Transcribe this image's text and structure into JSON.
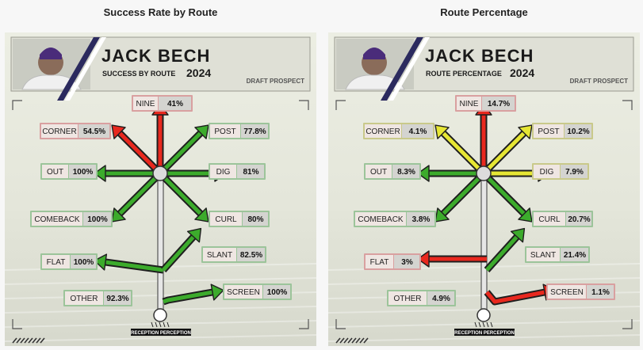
{
  "panels": [
    {
      "title": "Success Rate by Route",
      "player_first": "JACK",
      "player_last": "BECH",
      "subtitle": "SUCCESS BY ROUTE",
      "year": "2024",
      "tag": "DRAFT PROSPECT",
      "footer": "RECEPTION PERCEPTION",
      "routes": [
        {
          "key": "nine",
          "label": "NINE",
          "value": "41%",
          "color": "red"
        },
        {
          "key": "corner",
          "label": "CORNER",
          "value": "54.5%",
          "color": "red"
        },
        {
          "key": "post",
          "label": "POST",
          "value": "77.8%",
          "color": "green"
        },
        {
          "key": "out",
          "label": "OUT",
          "value": "100%",
          "color": "green"
        },
        {
          "key": "dig",
          "label": "DIG",
          "value": "81%",
          "color": "green"
        },
        {
          "key": "comeback",
          "label": "COMEBACK",
          "value": "100%",
          "color": "green"
        },
        {
          "key": "curl",
          "label": "CURL",
          "value": "80%",
          "color": "green"
        },
        {
          "key": "flat",
          "label": "FLAT",
          "value": "100%",
          "color": "green"
        },
        {
          "key": "slant",
          "label": "SLANT",
          "value": "82.5%",
          "color": "green"
        },
        {
          "key": "other",
          "label": "OTHER",
          "value": "92.3%",
          "color": "green"
        },
        {
          "key": "screen",
          "label": "SCREEN",
          "value": "100%",
          "color": "green"
        }
      ]
    },
    {
      "title": "Route Percentage",
      "player_first": "JACK",
      "player_last": "BECH",
      "subtitle": "ROUTE PERCENTAGE",
      "year": "2024",
      "tag": "DRAFT PROSPECT",
      "footer": "RECEPTION PERCEPTION",
      "routes": [
        {
          "key": "nine",
          "label": "NINE",
          "value": "14.7%",
          "color": "red"
        },
        {
          "key": "corner",
          "label": "CORNER",
          "value": "4.1%",
          "color": "yellow"
        },
        {
          "key": "post",
          "label": "POST",
          "value": "10.2%",
          "color": "yellow"
        },
        {
          "key": "out",
          "label": "OUT",
          "value": "8.3%",
          "color": "green"
        },
        {
          "key": "dig",
          "label": "DIG",
          "value": "7.9%",
          "color": "yellow"
        },
        {
          "key": "comeback",
          "label": "COMEBACK",
          "value": "3.8%",
          "color": "green"
        },
        {
          "key": "curl",
          "label": "CURL",
          "value": "20.7%",
          "color": "green"
        },
        {
          "key": "flat",
          "label": "FLAT",
          "value": "3%",
          "color": "red"
        },
        {
          "key": "slant",
          "label": "SLANT",
          "value": "21.4%",
          "color": "green"
        },
        {
          "key": "other",
          "label": "OTHER",
          "value": "4.9%",
          "color": "green"
        },
        {
          "key": "screen",
          "label": "SCREEN",
          "value": "1.1%",
          "color": "red"
        }
      ]
    }
  ],
  "colors": {
    "red": "#e8281e",
    "green": "#3cab2c",
    "yellow": "#e6e634",
    "box_red": "#d9a0a0",
    "box_green": "#9cc49a",
    "box_yellow": "#c9c98a"
  },
  "chart_data": [
    {
      "type": "table",
      "title": "Success Rate by Route",
      "categories": [
        "NINE",
        "CORNER",
        "POST",
        "OUT",
        "DIG",
        "COMEBACK",
        "CURL",
        "FLAT",
        "SLANT",
        "OTHER",
        "SCREEN"
      ],
      "values": [
        41,
        54.5,
        77.8,
        100,
        81,
        100,
        80,
        100,
        82.5,
        92.3,
        100
      ]
    },
    {
      "type": "table",
      "title": "Route Percentage",
      "categories": [
        "NINE",
        "CORNER",
        "POST",
        "OUT",
        "DIG",
        "COMEBACK",
        "CURL",
        "FLAT",
        "SLANT",
        "OTHER",
        "SCREEN"
      ],
      "values": [
        14.7,
        4.1,
        10.2,
        8.3,
        7.9,
        3.8,
        20.7,
        3,
        21.4,
        4.9,
        1.1
      ]
    }
  ]
}
